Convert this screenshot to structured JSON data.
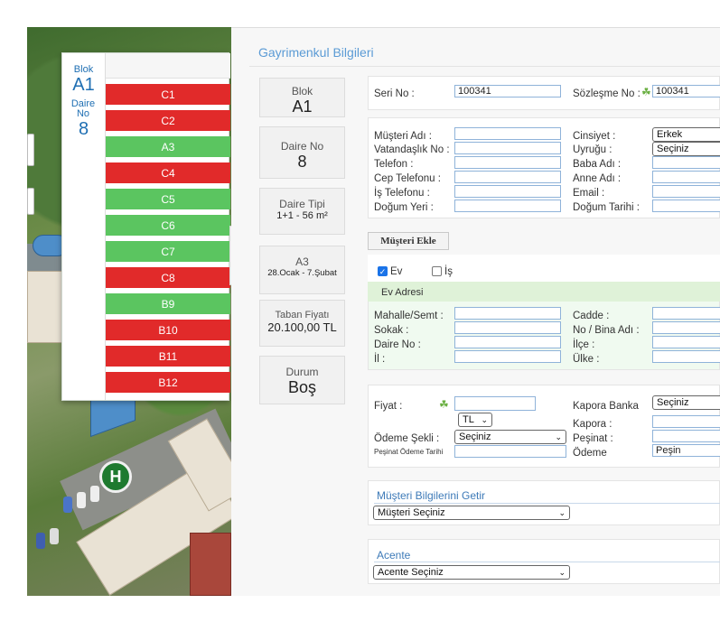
{
  "block_panel": {
    "blok_label": "Blok",
    "blok_value": "A1",
    "daire_label": "Daire No",
    "daire_value": "8",
    "units": [
      {
        "label": "C1",
        "status": "sold"
      },
      {
        "label": "C2",
        "status": "sold"
      },
      {
        "label": "A3",
        "status": "free"
      },
      {
        "label": "C4",
        "status": "sold"
      },
      {
        "label": "C5",
        "status": "free"
      },
      {
        "label": "C6",
        "status": "free"
      },
      {
        "label": "C7",
        "status": "free"
      },
      {
        "label": "C8",
        "status": "sold"
      },
      {
        "label": "B9",
        "status": "free"
      },
      {
        "label": "B10",
        "status": "sold"
      },
      {
        "label": "B11",
        "status": "sold"
      },
      {
        "label": "B12",
        "status": "sold"
      }
    ],
    "colors": {
      "sold": "#e12a2a",
      "free": "#5bc560"
    }
  },
  "map": {
    "badge": "H"
  },
  "panel": {
    "title": "Gayrimenkul Bilgileri",
    "info": {
      "blok_label": "Blok",
      "blok_value": "A1",
      "daire_label": "Daire No",
      "daire_value": "8",
      "tip_label": "Daire Tipi",
      "tip_value": "1+1 - 56 m²",
      "period_label": "A3",
      "period_value": "28.Ocak - 7.Şubat",
      "fiyat_label": "Taban Fiyatı",
      "fiyat_value": "20.100,00 TL",
      "durum_label": "Durum",
      "durum_value": "Boş"
    }
  },
  "contract": {
    "seri_label": "Seri No :",
    "seri_value": "100341",
    "sozlesme_label": "Sözleşme No :",
    "sozlesme_value": "100341"
  },
  "customer": {
    "musteri_adi": "Müşteri Adı :",
    "vatandaslik": "Vatandaşlık No :",
    "telefon": "Telefon :",
    "cep": "Cep Telefonu :",
    "is_tel": "İş Telefonu :",
    "dogum_yeri": "Doğum Yeri :",
    "cinsiyet": "Cinsiyet :",
    "cinsiyet_value": "Erkek",
    "uyrugu": "Uyruğu :",
    "uyrugu_value": "Seçiniz",
    "baba": "Baba Adı :",
    "anne": "Anne Adı :",
    "email": "Email :",
    "dogum_tarihi": "Doğum Tarihi :"
  },
  "add_customer_button": "Müşteri Ekle",
  "address": {
    "ev_label": "Ev",
    "is_label": "İş",
    "header": "Ev Adresi",
    "mahalle": "Mahalle/Semt :",
    "sokak": "Sokak :",
    "daire_no": "Daire No :",
    "il": "İl :",
    "cadde": "Cadde :",
    "no_bina": "No / Bina Adı :",
    "ilce": "İlçe :",
    "ulke": "Ülke :"
  },
  "payment": {
    "fiyat": "Fiyat :",
    "currency": "TL",
    "odeme_sekli": "Ödeme Şekli :",
    "odeme_sekli_value": "Seçiniz",
    "pesinat_tarihi": "Peşinat Ödeme Tarihi",
    "kapora_banka": "Kapora Banka",
    "kapora_banka_value": "Seçiniz",
    "kapora": "Kapora :",
    "pesinat": "Peşinat :",
    "odeme": "Ödeme",
    "odeme_value": "Peşin"
  },
  "fetch": {
    "title": "Müşteri Bilgilerini Getir",
    "select_value": "Müşteri Seçiniz"
  },
  "agent": {
    "title": "Acente",
    "select_value": "Acente Seçiniz"
  }
}
